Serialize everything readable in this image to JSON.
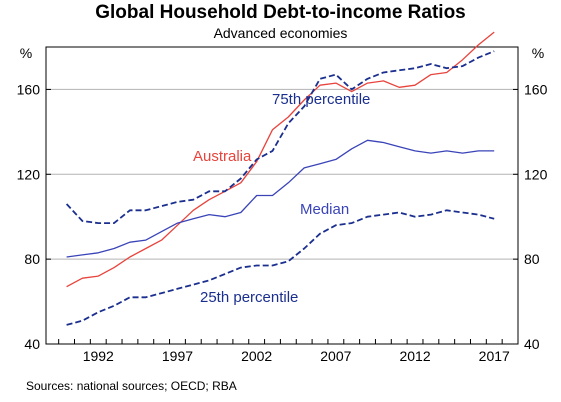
{
  "chart_data": {
    "type": "line",
    "title": "Global Household Debt-to-income Ratios",
    "subtitle": "Advanced economies",
    "left_unit": "%",
    "right_unit": "%",
    "ylim": [
      40,
      180
    ],
    "y_ticks": [
      40,
      80,
      120,
      160
    ],
    "x_tick_labels": [
      "1992",
      "1997",
      "2002",
      "2007",
      "2012",
      "2017"
    ],
    "x_tick_values": [
      1992,
      1997,
      2002,
      2007,
      2012,
      2017
    ],
    "xlim": [
      1989.2,
      2019.0
    ],
    "grid": true,
    "series": [
      {
        "name": "Australia",
        "color": "#e8433c",
        "dash": false,
        "x": [
          1990.5,
          1991.5,
          1992.5,
          1993.5,
          1994.5,
          1995.5,
          1996.5,
          1997.5,
          1998.5,
          1999.5,
          2000.5,
          2001.5,
          2002.5,
          2003.5,
          2004.5,
          2005.5,
          2006.5,
          2007.5,
          2008.5,
          2009.5,
          2010.5,
          2011.5,
          2012.5,
          2013.5,
          2014.5,
          2015.5,
          2016.5,
          2017.5
        ],
        "values": [
          67,
          71,
          72,
          76,
          81,
          85,
          89,
          96,
          103,
          108,
          112,
          116,
          126,
          141,
          147,
          155,
          162,
          163,
          159,
          163,
          164,
          161,
          162,
          167,
          168,
          174,
          181,
          187
        ]
      },
      {
        "name": "75th percentile",
        "color": "#1b2f8f",
        "dash": true,
        "x": [
          1990.5,
          1991.5,
          1992.5,
          1993.5,
          1994.5,
          1995.5,
          1996.5,
          1997.5,
          1998.5,
          1999.5,
          2000.5,
          2001.5,
          2002.5,
          2003.5,
          2004.5,
          2005.5,
          2006.5,
          2007.5,
          2008.5,
          2009.5,
          2010.5,
          2011.5,
          2012.5,
          2013.5,
          2014.5,
          2015.5,
          2016.5,
          2017.5
        ],
        "values": [
          106,
          98,
          97,
          97,
          103,
          103,
          105,
          107,
          108,
          112,
          112,
          118,
          127,
          131,
          144,
          152,
          165,
          167,
          160,
          165,
          168,
          169,
          170,
          172,
          170,
          171,
          175,
          178
        ]
      },
      {
        "name": "Median",
        "color": "#3a44b8",
        "dash": false,
        "x": [
          1990.5,
          1991.5,
          1992.5,
          1993.5,
          1994.5,
          1995.5,
          1996.5,
          1997.5,
          1998.5,
          1999.5,
          2000.5,
          2001.5,
          2002.5,
          2003.5,
          2004.5,
          2005.5,
          2006.5,
          2007.5,
          2008.5,
          2009.5,
          2010.5,
          2011.5,
          2012.5,
          2013.5,
          2014.5,
          2015.5,
          2016.5,
          2017.5
        ],
        "values": [
          81,
          82,
          83,
          85,
          88,
          89,
          93,
          97,
          99,
          101,
          100,
          102,
          110,
          110,
          116,
          123,
          125,
          127,
          132,
          136,
          135,
          133,
          131,
          130,
          131,
          130,
          131,
          131
        ]
      },
      {
        "name": "25th percentile",
        "color": "#1b2f8f",
        "dash": true,
        "x": [
          1990.5,
          1991.5,
          1992.5,
          1993.5,
          1994.5,
          1995.5,
          1996.5,
          1997.5,
          1998.5,
          1999.5,
          2000.5,
          2001.5,
          2002.5,
          2003.5,
          2004.5,
          2005.5,
          2006.5,
          2007.5,
          2008.5,
          2009.5,
          2010.5,
          2011.5,
          2012.5,
          2013.5,
          2014.5,
          2015.5,
          2016.5,
          2017.5
        ],
        "values": [
          49,
          51,
          55,
          58,
          62,
          62,
          64,
          66,
          68,
          70,
          73,
          76,
          77,
          77,
          79,
          85,
          92,
          96,
          97,
          100,
          101,
          102,
          100,
          101,
          103,
          102,
          101,
          99
        ]
      }
    ]
  },
  "source_note": "Sources:  national sources; OECD; RBA"
}
